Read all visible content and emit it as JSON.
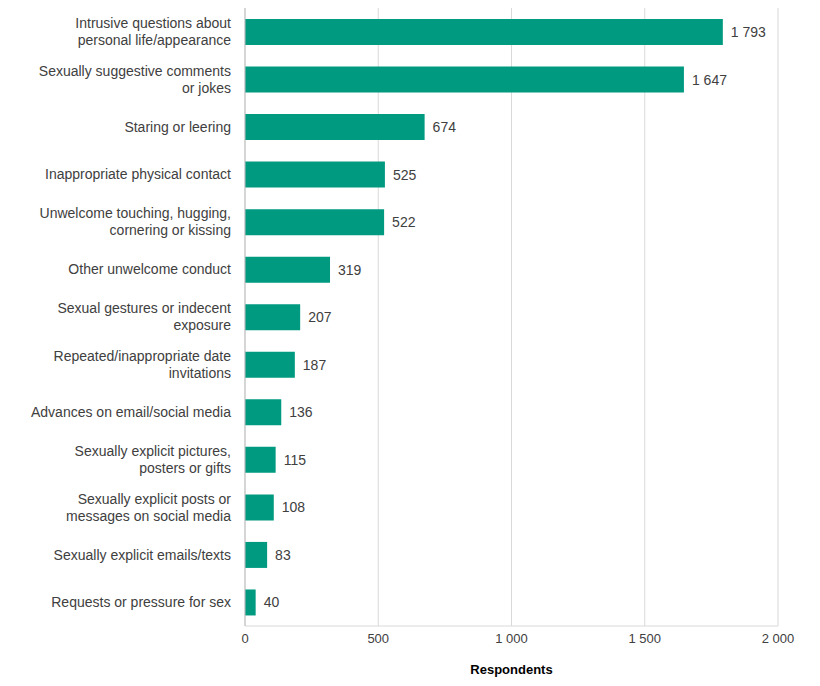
{
  "chart_data": {
    "type": "bar",
    "orientation": "horizontal",
    "x_label": "Respondents",
    "categories": [
      "Intrusive questions about personal life/appearance",
      "Sexually suggestive comments or jokes",
      "Staring or leering",
      "Inappropriate physical contact",
      "Unwelcome touching, hugging, cornering or kissing",
      "Other unwelcome conduct",
      "Sexual gestures or indecent exposure",
      "Repeated/inappropriate date invitations",
      "Advances on email/social media",
      "Sexually explicit pictures, posters or gifts",
      "Sexually explicit posts or messages on social media",
      "Sexually explicit emails/texts",
      "Requests or pressure for sex"
    ],
    "values": [
      1793,
      1647,
      674,
      525,
      522,
      319,
      207,
      187,
      136,
      115,
      108,
      83,
      40
    ],
    "value_labels": [
      "1 793",
      "1 647",
      "674",
      "525",
      "522",
      "319",
      "207",
      "187",
      "136",
      "115",
      "108",
      "83",
      "40"
    ],
    "data_labels": true,
    "color": "#009a80",
    "xlim": [
      0,
      2000
    ],
    "xticks": [
      0,
      500,
      {
        "value": 1000,
        "label": "1 000"
      },
      {
        "value": 1500,
        "label": "1 500"
      },
      {
        "value": 2000,
        "label": "2 000"
      }
    ],
    "grid": true
  }
}
